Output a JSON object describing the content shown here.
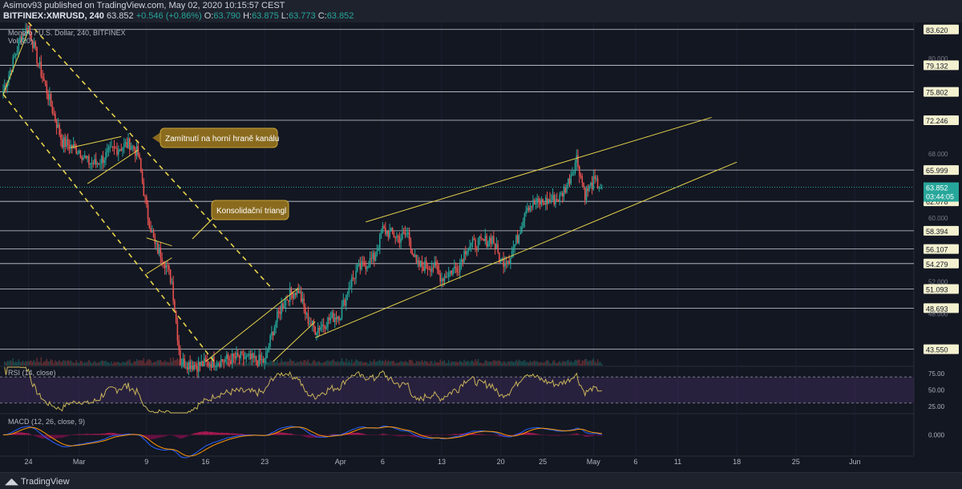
{
  "header": {
    "publisher_line": "Asimov93 published on TradingView.com, May 02, 2020 10:15:57 CEST",
    "symbol_line_prefix": "BITFINEX:XMRUSD, 240",
    "last": "63.852",
    "change": "+0.546 (+0.86%)",
    "o_label": "O:",
    "o": "63.790",
    "h_label": "H:",
    "h": "63.875",
    "l_label": "L:",
    "l": "63.773",
    "c_label": "C:",
    "c": "63.852"
  },
  "legend": {
    "main": "Monero / U.S. Dollar, 240, BITFINEX",
    "vol": "Vol (20)",
    "rsi": "RSI (14, close)",
    "macd": "MACD (12, 26, close, 9)"
  },
  "footer": {
    "brand": "TradingView"
  },
  "colors": {
    "background": "#131722",
    "up": "#26a69a",
    "down": "#ef5350",
    "channel": "#e6d24a",
    "level": "#e0e3eb",
    "rsi_line": "#c9b458",
    "rsi_band": "#3a2a55",
    "macd_line": "#2962ff",
    "signal_line": "#ff9800",
    "hist_up": "#d81b60",
    "annotation_bg": "#8a6b1e"
  },
  "annotations": [
    {
      "name": "annotation-channel-rejection",
      "text": "Zamítnutí na horní hraně kanálu"
    },
    {
      "name": "annotation-consolidation-triangle",
      "text": "Konsolidační triangl"
    }
  ],
  "chart_data": [
    {
      "type": "candlestick",
      "title": "Monero / U.S. Dollar, 240, BITFINEX",
      "x_ticks": [
        "24",
        "Mar",
        "9",
        "16",
        "23",
        "Apr",
        "6",
        "13",
        "20",
        "25",
        "May",
        "6",
        "11",
        "18",
        "25",
        "Jun"
      ],
      "y_ticks": [
        "80.000",
        "68.000",
        "60.000",
        "52.000",
        "48.000"
      ],
      "ylim": [
        41.5,
        84.5
      ],
      "x_domain": [
        "2020-02-21",
        "2020-06-08"
      ],
      "price_levels": [
        "83.620",
        "79.132",
        "75.802",
        "72.246",
        "65.999",
        "62.078",
        "58.394",
        "56.107",
        "54.279",
        "51.093",
        "48.693",
        "43.550"
      ],
      "current_price": "63.852",
      "countdown": "03:44:05",
      "ohlc_anchors": [
        {
          "t": "2020-02-21",
          "c": 76.0
        },
        {
          "t": "2020-02-22",
          "c": 79.0
        },
        {
          "t": "2020-02-23",
          "c": 82.5
        },
        {
          "t": "2020-02-24",
          "c": 84.0
        },
        {
          "t": "2020-02-25",
          "c": 80.0
        },
        {
          "t": "2020-02-26",
          "c": 76.5
        },
        {
          "t": "2020-02-27",
          "c": 73.0
        },
        {
          "t": "2020-02-28",
          "c": 69.5
        },
        {
          "t": "2020-03-01",
          "c": 68.5
        },
        {
          "t": "2020-03-02",
          "c": 67.0
        },
        {
          "t": "2020-03-03",
          "c": 66.8
        },
        {
          "t": "2020-03-05",
          "c": 68.5
        },
        {
          "t": "2020-03-07",
          "c": 69.3
        },
        {
          "t": "2020-03-08",
          "c": 68.0
        },
        {
          "t": "2020-03-09",
          "c": 61.0
        },
        {
          "t": "2020-03-10",
          "c": 56.5
        },
        {
          "t": "2020-03-11",
          "c": 55.0
        },
        {
          "t": "2020-03-12",
          "c": 52.0
        },
        {
          "t": "2020-03-13",
          "c": 42.0
        },
        {
          "t": "2020-03-15",
          "c": 41.5
        },
        {
          "t": "2020-03-17",
          "c": 42.0
        },
        {
          "t": "2020-03-20",
          "c": 42.5
        },
        {
          "t": "2020-03-23",
          "c": 42.0
        },
        {
          "t": "2020-03-24",
          "c": 46.0
        },
        {
          "t": "2020-03-25",
          "c": 49.0
        },
        {
          "t": "2020-03-26",
          "c": 50.5
        },
        {
          "t": "2020-03-27",
          "c": 51.0
        },
        {
          "t": "2020-03-28",
          "c": 47.5
        },
        {
          "t": "2020-03-29",
          "c": 46.0
        },
        {
          "t": "2020-03-31",
          "c": 47.5
        },
        {
          "t": "2020-04-01",
          "c": 48.0
        },
        {
          "t": "2020-04-02",
          "c": 51.5
        },
        {
          "t": "2020-04-03",
          "c": 53.5
        },
        {
          "t": "2020-04-05",
          "c": 55.0
        },
        {
          "t": "2020-04-06",
          "c": 58.5
        },
        {
          "t": "2020-04-07",
          "c": 58.0
        },
        {
          "t": "2020-04-08",
          "c": 57.5
        },
        {
          "t": "2020-04-09",
          "c": 58.0
        },
        {
          "t": "2020-04-10",
          "c": 54.0
        },
        {
          "t": "2020-04-12",
          "c": 54.0
        },
        {
          "t": "2020-04-13",
          "c": 52.5
        },
        {
          "t": "2020-04-15",
          "c": 54.0
        },
        {
          "t": "2020-04-16",
          "c": 56.5
        },
        {
          "t": "2020-04-18",
          "c": 57.0
        },
        {
          "t": "2020-04-19",
          "c": 57.5
        },
        {
          "t": "2020-04-20",
          "c": 54.5
        },
        {
          "t": "2020-04-21",
          "c": 55.0
        },
        {
          "t": "2020-04-22",
          "c": 57.5
        },
        {
          "t": "2020-04-23",
          "c": 61.5
        },
        {
          "t": "2020-04-25",
          "c": 62.0
        },
        {
          "t": "2020-04-27",
          "c": 62.5
        },
        {
          "t": "2020-04-28",
          "c": 64.5
        },
        {
          "t": "2020-04-29",
          "c": 67.5
        },
        {
          "t": "2020-04-30",
          "c": 63.0
        },
        {
          "t": "2020-05-01",
          "c": 64.5
        },
        {
          "t": "2020-05-02",
          "c": 63.852
        }
      ],
      "trendlines": [
        {
          "name": "descending-channel-upper",
          "style": "dashed",
          "from": {
            "t": "2020-02-24",
            "p": 84.5
          },
          "to": {
            "t": "2020-03-24",
            "p": 51.0
          }
        },
        {
          "name": "descending-channel-lower",
          "style": "dashed",
          "from": {
            "t": "2020-02-21",
            "p": 75.5
          },
          "to": {
            "t": "2020-03-17",
            "p": 42.0
          }
        },
        {
          "name": "ascending-channel-upper",
          "style": "solid",
          "from": {
            "t": "2020-04-04",
            "p": 59.5
          },
          "to": {
            "t": "2020-05-15",
            "p": 72.6
          }
        },
        {
          "name": "ascending-channel-lower",
          "style": "solid",
          "from": {
            "t": "2020-03-29",
            "p": 45.0
          },
          "to": {
            "t": "2020-05-18",
            "p": 67.0
          }
        },
        {
          "name": "march-rise-line",
          "style": "solid",
          "from": {
            "t": "2020-03-16",
            "p": 42.0
          },
          "to": {
            "t": "2020-03-27",
            "p": 51.2
          }
        },
        {
          "name": "march-rise-line-2",
          "style": "solid",
          "from": {
            "t": "2020-03-24",
            "p": 42.0
          },
          "to": {
            "t": "2020-03-29",
            "p": 47.0
          }
        },
        {
          "name": "february-support",
          "style": "solid",
          "from": {
            "t": "2020-02-21",
            "p": 75.5
          },
          "to": {
            "t": "2020-02-24",
            "p": 83.5
          }
        },
        {
          "name": "flag-upper",
          "style": "solid",
          "from": {
            "t": "2020-02-29",
            "p": 68.8
          },
          "to": {
            "t": "2020-03-06",
            "p": 70.2
          }
        },
        {
          "name": "flag-lower",
          "style": "solid",
          "from": {
            "t": "2020-03-02",
            "p": 64.3
          },
          "to": {
            "t": "2020-03-08",
            "p": 68.5
          }
        },
        {
          "name": "triangle-upper",
          "style": "solid",
          "from": {
            "t": "2020-03-09",
            "p": 57.5
          },
          "to": {
            "t": "2020-03-12",
            "p": 56.5
          }
        },
        {
          "name": "triangle-lower",
          "style": "solid",
          "from": {
            "t": "2020-03-09",
            "p": 53.0
          },
          "to": {
            "t": "2020-03-12",
            "p": 55.0
          }
        }
      ]
    },
    {
      "type": "line",
      "title": "RSI (14, close)",
      "y_ticks": [
        "75.00",
        "50.00",
        "25.00"
      ],
      "ylim": [
        15,
        85
      ],
      "bands": {
        "upper": 70,
        "lower": 30
      },
      "values_from": "close"
    },
    {
      "type": "line+histogram",
      "title": "MACD (12, 26, close, 9)",
      "y_ticks": [
        "0.000"
      ],
      "ylim": [
        -4.5,
        4.5
      ],
      "values_from": "close"
    }
  ]
}
